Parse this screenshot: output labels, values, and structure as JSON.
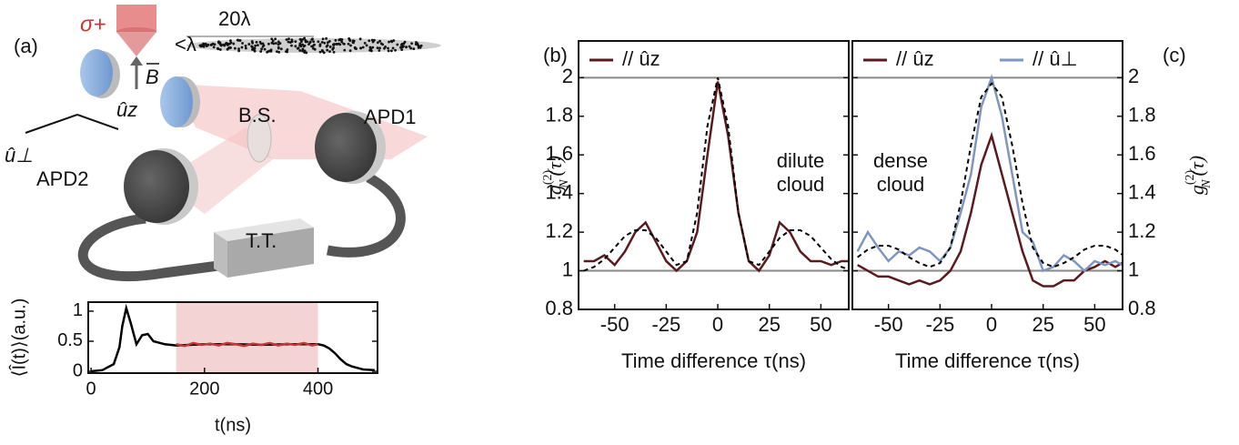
{
  "diagram": {
    "label": "(a)",
    "sigma": "σ+",
    "length": "20λ",
    "spacing": "<λ",
    "field": "B",
    "splitter": "B.S.",
    "detector1": "APD1",
    "detector2": "APD2",
    "timetagger": "T.T.",
    "axis_perp": "û⊥",
    "axis_z": "ûz"
  },
  "chart_data": [
    {
      "type": "line",
      "label": "(b)",
      "xlabel": "Time difference τ(ns)",
      "ylabel": {
        "base": "g",
        "sup": "(2)",
        "sub": "N",
        "arg": "(τ)"
      },
      "x": [
        -65,
        -60,
        -55,
        -50,
        -45,
        -40,
        -35,
        -30,
        -25,
        -20,
        -15,
        -10,
        -5,
        0,
        5,
        10,
        15,
        20,
        25,
        30,
        35,
        40,
        45,
        50,
        55,
        60,
        65
      ],
      "series": [
        {
          "name": "// ûz",
          "color": "#5b1a1e",
          "values": [
            1.05,
            1.05,
            1.08,
            1.03,
            1.1,
            1.2,
            1.25,
            1.15,
            1.05,
            1.0,
            1.05,
            1.2,
            1.6,
            1.98,
            1.7,
            1.3,
            1.05,
            1.0,
            1.08,
            1.25,
            1.2,
            1.1,
            1.05,
            1.05,
            1.03,
            1.05,
            1.05
          ]
        },
        {
          "color": "#000000",
          "dashed": true,
          "values": [
            1.0,
            1.02,
            1.06,
            1.12,
            1.18,
            1.21,
            1.21,
            1.17,
            1.1,
            1.03,
            1.05,
            1.3,
            1.75,
            2.0,
            1.75,
            1.3,
            1.05,
            1.03,
            1.1,
            1.17,
            1.21,
            1.21,
            1.18,
            1.12,
            1.06,
            1.02,
            1.0
          ]
        }
      ],
      "xlim": [
        -67.5,
        63.5
      ],
      "ylim": [
        0.8,
        2.19
      ],
      "xticks": [
        -50,
        -25,
        0,
        25,
        50
      ],
      "yticks": [
        0.8,
        1,
        1.2,
        1.4,
        1.6,
        1.8,
        2
      ],
      "hlines": [
        1,
        2
      ],
      "annotation": [
        "dilute",
        "cloud"
      ],
      "yaxis_side": "left",
      "legend": "upper left"
    },
    {
      "type": "line",
      "label": "(c)",
      "xlabel": "Time difference τ(ns)",
      "ylabel": {
        "base": "g",
        "sup": "(2)",
        "sub": "N",
        "arg": "(τ)"
      },
      "x": [
        -65,
        -60,
        -55,
        -50,
        -45,
        -40,
        -35,
        -30,
        -25,
        -20,
        -15,
        -10,
        -5,
        0,
        5,
        10,
        15,
        20,
        25,
        30,
        35,
        40,
        45,
        50,
        55,
        60,
        65
      ],
      "series": [
        {
          "name": "// ûz",
          "color": "#5b1a1e",
          "values": [
            1.03,
            1.0,
            0.97,
            0.97,
            0.95,
            0.93,
            0.95,
            0.93,
            0.95,
            1.0,
            1.1,
            1.3,
            1.55,
            1.7,
            1.5,
            1.3,
            1.1,
            0.95,
            0.92,
            0.92,
            0.95,
            0.95,
            1.0,
            1.02,
            1.05,
            1.02,
            1.05
          ]
        },
        {
          "name": "// û⊥",
          "color": "#7f96c2",
          "values": [
            1.1,
            1.2,
            1.12,
            1.05,
            1.1,
            1.08,
            1.12,
            1.1,
            1.05,
            1.12,
            1.3,
            1.5,
            1.85,
            2.0,
            1.8,
            1.5,
            1.2,
            1.15,
            1.0,
            1.02,
            1.08,
            1.05,
            1.0,
            1.05,
            1.03,
            1.05,
            1.02
          ]
        },
        {
          "color": "#000000",
          "dashed": true,
          "values": [
            1.07,
            1.11,
            1.13,
            1.13,
            1.11,
            1.07,
            1.04,
            1.02,
            1.04,
            1.12,
            1.35,
            1.65,
            1.9,
            1.97,
            1.9,
            1.65,
            1.35,
            1.12,
            1.04,
            1.02,
            1.04,
            1.07,
            1.11,
            1.13,
            1.13,
            1.11,
            1.07
          ]
        }
      ],
      "xlim": [
        -67.5,
        63.5
      ],
      "ylim": [
        0.8,
        2.19
      ],
      "xticks": [
        -50,
        -25,
        0,
        25,
        50
      ],
      "yticks": [
        0.8,
        1,
        1.2,
        1.4,
        1.6,
        1.8,
        2
      ],
      "hlines": [
        1,
        2
      ],
      "annotation": [
        "dense",
        "cloud"
      ],
      "yaxis_side": "right",
      "legend": "upper"
    },
    {
      "type": "line",
      "xlabel": "t(ns)",
      "ylabel": "⟨Î(t)⟩(a.u.)",
      "series": [
        {
          "color": "#000000",
          "x": [
            0,
            20,
            40,
            50,
            55,
            62,
            70,
            80,
            90,
            100,
            110,
            130,
            150,
            200,
            250,
            300,
            350,
            400,
            410,
            420,
            430,
            440,
            450,
            460,
            480,
            500
          ],
          "values": [
            0,
            0.02,
            0.12,
            0.4,
            0.75,
            1.05,
            0.8,
            0.45,
            0.6,
            0.62,
            0.5,
            0.45,
            0.43,
            0.45,
            0.45,
            0.44,
            0.45,
            0.45,
            0.43,
            0.38,
            0.3,
            0.2,
            0.12,
            0.08,
            0.03,
            0.02
          ]
        },
        {
          "color": "#c0393b",
          "x": [
            150,
            165,
            180,
            195,
            210,
            225,
            240,
            255,
            270,
            285,
            300,
            315,
            330,
            345,
            360,
            375,
            390,
            400
          ],
          "values": [
            0.45,
            0.42,
            0.47,
            0.44,
            0.46,
            0.43,
            0.47,
            0.45,
            0.42,
            0.46,
            0.44,
            0.47,
            0.43,
            0.46,
            0.44,
            0.47,
            0.43,
            0.45
          ]
        }
      ],
      "highlight": [
        150,
        400
      ],
      "highlight_color": "#f3d3d3",
      "xlim": [
        -5,
        505
      ],
      "ylim": [
        -0.03,
        1.15
      ],
      "xticks": [
        0,
        200,
        400
      ],
      "yticks": [
        0,
        0.5,
        1
      ]
    }
  ]
}
